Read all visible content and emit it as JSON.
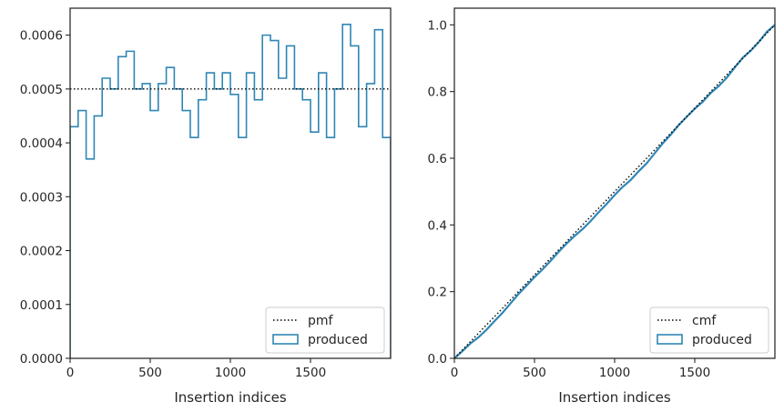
{
  "chart_data": [
    {
      "type": "histogram-step",
      "xlabel": "Insertion indices",
      "ylabel": "",
      "xlim": [
        0,
        2000
      ],
      "ylim": [
        0,
        0.00065
      ],
      "xticks": [
        0,
        500,
        1000,
        1500
      ],
      "xtick_labels": [
        "0",
        "500",
        "1000",
        "1500"
      ],
      "yticks": [
        0,
        0.0001,
        0.0002,
        0.0003,
        0.0004,
        0.0005,
        0.0006
      ],
      "ytick_labels": [
        "0.0000",
        "0.0001",
        "0.0002",
        "0.0003",
        "0.0004",
        "0.0005",
        "0.0006"
      ],
      "grid": false,
      "legend_position": "lower right",
      "reference_line": {
        "name": "pmf",
        "value": 0.0005,
        "style": "dotted",
        "color": "#000000"
      },
      "series": [
        {
          "name": "produced",
          "color": "#2f86b5",
          "bin_edges": [
            0,
            50,
            100,
            150,
            200,
            250,
            300,
            350,
            400,
            450,
            500,
            550,
            600,
            650,
            700,
            750,
            800,
            850,
            900,
            950,
            1000,
            1050,
            1100,
            1150,
            1200,
            1250,
            1300,
            1350,
            1400,
            1450,
            1500,
            1550,
            1600,
            1650,
            1700,
            1750,
            1800,
            1850,
            1900,
            1950,
            2000
          ],
          "values": [
            0.00043,
            0.00046,
            0.00037,
            0.00045,
            0.00052,
            0.0005,
            0.00056,
            0.00057,
            0.0005,
            0.00051,
            0.00046,
            0.00051,
            0.00054,
            0.0005,
            0.00046,
            0.00041,
            0.00048,
            0.00053,
            0.0005,
            0.00053,
            0.00049,
            0.00041,
            0.00053,
            0.00048,
            0.0006,
            0.00059,
            0.00052,
            0.00058,
            0.0005,
            0.00048,
            0.00042,
            0.00053,
            0.00041,
            0.0005,
            0.00062,
            0.00058,
            0.00043,
            0.00051,
            0.00061,
            0.00041
          ]
        }
      ]
    },
    {
      "type": "line",
      "xlabel": "Insertion indices",
      "ylabel": "",
      "xlim": [
        0,
        2000
      ],
      "ylim": [
        0,
        1.05
      ],
      "xticks": [
        0,
        500,
        1000,
        1500
      ],
      "xtick_labels": [
        "0",
        "500",
        "1000",
        "1500"
      ],
      "yticks": [
        0,
        0.2,
        0.4,
        0.6,
        0.8,
        1.0
      ],
      "ytick_labels": [
        "0.0",
        "0.2",
        "0.4",
        "0.6",
        "0.8",
        "1.0"
      ],
      "grid": false,
      "legend_position": "lower right",
      "reference_line": {
        "name": "cmf",
        "x": [
          0,
          2000
        ],
        "y": [
          0,
          1.0
        ],
        "style": "dotted",
        "color": "#000000"
      },
      "series": [
        {
          "name": "produced",
          "color": "#2f86b5",
          "x": [
            0,
            50,
            100,
            150,
            200,
            250,
            300,
            350,
            400,
            450,
            500,
            550,
            600,
            650,
            700,
            750,
            800,
            850,
            900,
            950,
            1000,
            1050,
            1100,
            1150,
            1200,
            1250,
            1300,
            1350,
            1400,
            1450,
            1500,
            1550,
            1600,
            1650,
            1700,
            1750,
            1800,
            1850,
            1900,
            1950,
            2000
          ],
          "y": [
            0,
            0.0215,
            0.0445,
            0.063,
            0.0855,
            0.1115,
            0.1365,
            0.1645,
            0.193,
            0.218,
            0.2435,
            0.2665,
            0.292,
            0.319,
            0.344,
            0.367,
            0.3875,
            0.4115,
            0.438,
            0.463,
            0.4895,
            0.514,
            0.5345,
            0.561,
            0.585,
            0.615,
            0.6445,
            0.6705,
            0.6995,
            0.7245,
            0.7485,
            0.7695,
            0.796,
            0.8165,
            0.8415,
            0.8725,
            0.9015,
            0.923,
            0.9485,
            0.979,
            1.0
          ]
        }
      ]
    }
  ]
}
